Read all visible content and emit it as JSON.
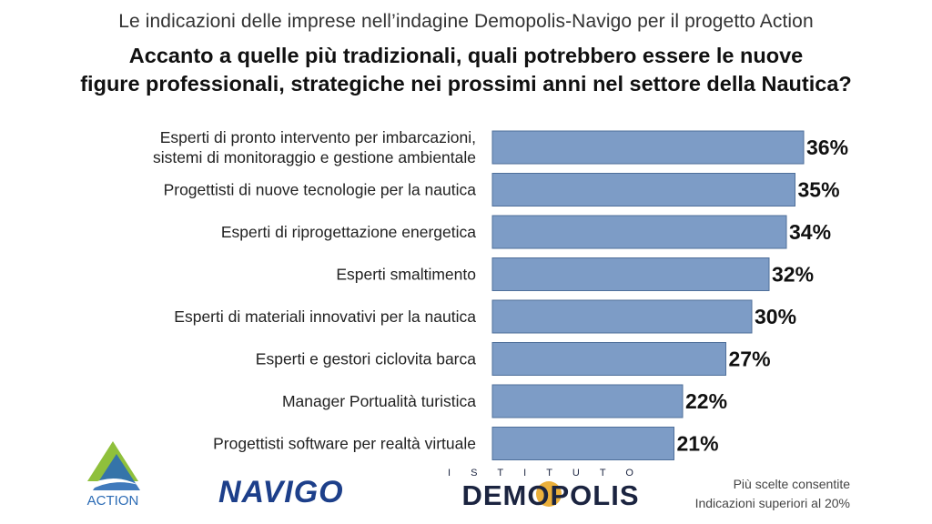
{
  "header": {
    "subtitle": "Le indicazioni delle imprese nell’indagine Demopolis-Navigo per il progetto Action",
    "title_line1": "Accanto a quelle più tradizionali, quali potrebbero essere le nuove",
    "title_line2": "figure professionali, strategiche nei prossimi anni nel settore della Nautica?"
  },
  "chart_data": {
    "type": "bar",
    "orientation": "horizontal",
    "categories": [
      [
        "Esperti di pronto intervento per imbarcazioni,",
        "sistemi di monitoraggio e gestione ambientale"
      ],
      [
        "Progettisti di nuove tecnologie per la nautica"
      ],
      [
        "Esperti di riprogettazione energetica"
      ],
      [
        "Esperti smaltimento"
      ],
      [
        "Esperti di materiali innovativi per la nautica"
      ],
      [
        "Esperti e gestori ciclovita barca"
      ],
      [
        "Manager Portualità turistica"
      ],
      [
        "Progettisti software per realtà virtuale"
      ]
    ],
    "values": [
      36,
      35,
      34,
      32,
      30,
      27,
      22,
      21
    ],
    "value_labels": [
      "36%",
      "35%",
      "34%",
      "32%",
      "30%",
      "27%",
      "22%",
      "21%"
    ],
    "unit": "%",
    "xlim": [
      0,
      36
    ],
    "grid": false,
    "bar_color": "#7d9cc6",
    "bar_border_color": "#4f6f9a"
  },
  "footer": {
    "note_line1": "Più scelte consentite",
    "note_line2": "Indicazioni superiori al 20%"
  },
  "logos": {
    "action": "ACTION",
    "navigo": "NAVIGO",
    "demopolis_top": "ISTITUTO",
    "demopolis_main": "DEMOPOLIS"
  },
  "colors": {
    "navigo_blue": "#1d3f8a",
    "demopolis_navy": "#1b2440",
    "demopolis_orange": "#e8a21a",
    "action_green": "#8fc03c",
    "action_blue": "#2b6bb5"
  }
}
